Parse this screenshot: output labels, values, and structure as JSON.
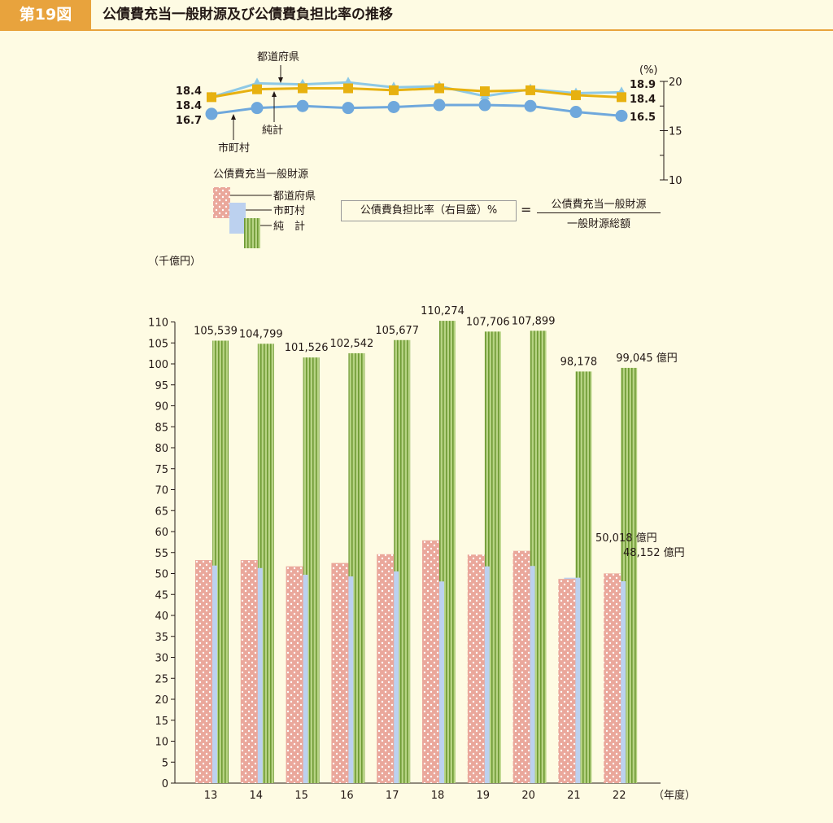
{
  "header": {
    "figure_label": "第19図",
    "title": "公債費充当一般財源及び公債費負担比率の推移"
  },
  "formula": {
    "left": "公債費負担比率（右目盛）%",
    "equals": "=",
    "numerator": "公債費充当一般財源",
    "denominator": "一般財源総額"
  },
  "colors": {
    "prefecture": "#eaa79b",
    "municipal": "#bcd1ef",
    "net": "#8db548",
    "line_prefecture": "#8ec9e6",
    "line_net": "#e7b110",
    "line_municipal": "#6fa8dc",
    "accent": "#e8a33d"
  },
  "chart_data": [
    {
      "type": "line",
      "title": "",
      "y_unit": "(%)",
      "ylim": [
        10,
        20
      ],
      "yticks": [
        "20",
        "15",
        "10"
      ],
      "x": [
        "13",
        "14",
        "15",
        "16",
        "17",
        "18",
        "19",
        "20",
        "21",
        "22"
      ],
      "series": [
        {
          "name": "都道府県",
          "marker": "triangle",
          "values": [
            18.4,
            19.8,
            19.7,
            19.9,
            19.4,
            19.5,
            18.5,
            19.2,
            18.8,
            18.9
          ],
          "start_label": "18.4",
          "end_label": "18.9"
        },
        {
          "name": "純計",
          "marker": "square",
          "values": [
            18.4,
            19.2,
            19.3,
            19.3,
            19.1,
            19.3,
            19.0,
            19.1,
            18.6,
            18.4
          ],
          "start_label": "18.4",
          "end_label": "18.4"
        },
        {
          "name": "市町村",
          "marker": "circle",
          "values": [
            16.7,
            17.3,
            17.5,
            17.3,
            17.4,
            17.6,
            17.6,
            17.5,
            16.9,
            16.5
          ],
          "start_label": "16.7",
          "end_label": "16.5"
        }
      ]
    },
    {
      "type": "bar",
      "title": "",
      "y_unit": "（千億円）",
      "x_unit": "（年度）",
      "legend_title": "公債費充当一般財源",
      "legend": [
        "都道府県",
        "市町村",
        "純　計"
      ],
      "ylim": [
        0,
        110
      ],
      "yticks": [
        "0",
        "5",
        "10",
        "15",
        "20",
        "25",
        "30",
        "35",
        "40",
        "45",
        "50",
        "55",
        "60",
        "65",
        "70",
        "75",
        "80",
        "85",
        "90",
        "95",
        "100",
        "105",
        "110"
      ],
      "categories": [
        "13",
        "14",
        "15",
        "16",
        "17",
        "18",
        "19",
        "20",
        "21",
        "22"
      ],
      "series": [
        {
          "name": "都道府県",
          "values": [
            53.2,
            53.2,
            51.7,
            52.5,
            54.6,
            57.9,
            54.5,
            55.4,
            48.7,
            50.018
          ]
        },
        {
          "name": "市町村",
          "values": [
            51.9,
            51.3,
            49.7,
            49.3,
            50.5,
            48.1,
            51.7,
            51.8,
            49.0,
            48.152
          ]
        },
        {
          "name": "純計",
          "values": [
            105.539,
            104.799,
            101.526,
            102.542,
            105.677,
            110.274,
            107.706,
            107.899,
            98.178,
            99.045
          ]
        }
      ],
      "net_labels": [
        "105,539",
        "104,799",
        "101,526",
        "102,542",
        "105,677",
        "110,274",
        "107,706",
        "107,899",
        "98,178",
        "99,045 億円"
      ],
      "last_prefecture_label": "50,018 億円",
      "last_municipal_label": "48,152 億円"
    }
  ]
}
